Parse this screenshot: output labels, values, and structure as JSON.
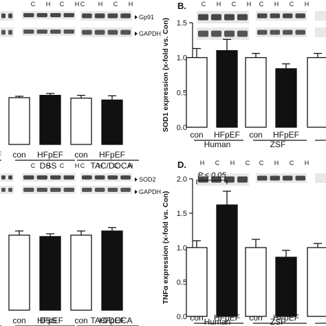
{
  "chart_data": [
    {
      "panel": "",
      "type": "bar",
      "categories": [
        "",
        "con",
        "HFpEF",
        "con",
        "HFpEF"
      ],
      "values": [
        0.97,
        1.0,
        1.05,
        0.99,
        0.95
      ],
      "errors": [
        0.06,
        0.03,
        0.04,
        0.06,
        0.09
      ],
      "fills": [
        "#111111",
        "#ffffff",
        "#111111",
        "#ffffff",
        "#111111"
      ],
      "groups": [
        {
          "label": "",
          "from": 0,
          "to": 0
        },
        {
          "label": "DSS",
          "from": 1,
          "to": 2
        },
        {
          "label": "TAC/DOCA",
          "from": 3,
          "to": 4
        }
      ],
      "blot_labels": [
        "Gp91",
        "GAPDH"
      ],
      "lane_letters": [
        [
          "C",
          "H",
          "C",
          "H"
        ],
        [
          "C",
          "H",
          "C",
          "H"
        ]
      ],
      "tick_labels": [
        "HFpEF"
      ],
      "ylim": [
        0,
        1.5
      ]
    },
    {
      "panel": "B.",
      "type": "bar",
      "categories": [
        "con",
        "HFpEF",
        "con",
        "HFpEF",
        ""
      ],
      "values": [
        1.0,
        1.1,
        1.0,
        0.84,
        1.0
      ],
      "errors": [
        0.13,
        0.16,
        0.06,
        0.07,
        0.06
      ],
      "fills": [
        "#ffffff",
        "#111111",
        "#ffffff",
        "#111111",
        "#ffffff"
      ],
      "groups": [
        {
          "label": "Human",
          "from": 0,
          "to": 1
        },
        {
          "label": "ZSF",
          "from": 2,
          "to": 3
        },
        {
          "label": "",
          "from": 4,
          "to": 4
        }
      ],
      "lane_letters": [
        [
          "C",
          "H",
          "C",
          "H"
        ],
        [
          "C",
          "H",
          "C",
          "H"
        ]
      ],
      "ylabel": "SOD1 expression (x-fold vs. Con)",
      "yticks": [
        "0.0",
        "0.5",
        "1.0",
        "1.5"
      ],
      "ylim": [
        0,
        1.5
      ],
      "annotation": ""
    },
    {
      "panel": "",
      "type": "bar",
      "categories": [
        "",
        "con",
        "HFpEF",
        "con",
        "HFpEF"
      ],
      "values": [
        1.08,
        1.08,
        1.06,
        1.08,
        1.14
      ],
      "errors": [
        0.05,
        0.06,
        0.04,
        0.06,
        0.05
      ],
      "fills": [
        "#111111",
        "#ffffff",
        "#111111",
        "#ffffff",
        "#111111"
      ],
      "groups": [
        {
          "label": "",
          "from": 0,
          "to": 0
        },
        {
          "label": "DSS",
          "from": 1,
          "to": 2
        },
        {
          "label": "TAC/DOCA",
          "from": 3,
          "to": 4
        }
      ],
      "blot_labels": [
        "SOD2",
        "GAPDH"
      ],
      "lane_letters": [
        [
          "C",
          "H",
          "C",
          "H"
        ],
        [
          "C",
          "H",
          "C",
          "H"
        ]
      ],
      "ylim": [
        0,
        2.0
      ]
    },
    {
      "panel": "D.",
      "type": "bar",
      "categories": [
        "con",
        "HFpEF",
        "con",
        "HFpEF",
        ""
      ],
      "values": [
        1.0,
        1.62,
        1.0,
        0.86,
        1.0
      ],
      "errors": [
        0.1,
        0.2,
        0.12,
        0.1,
        0.06
      ],
      "fills": [
        "#ffffff",
        "#111111",
        "#ffffff",
        "#111111",
        "#ffffff"
      ],
      "groups": [
        {
          "label": "Human",
          "from": 0,
          "to": 1
        },
        {
          "label": "ZSF",
          "from": 2,
          "to": 3
        },
        {
          "label": "",
          "from": 4,
          "to": 4
        }
      ],
      "lane_letters": [
        [
          "H",
          "C",
          "H",
          "C"
        ],
        [
          "C",
          "H",
          "C",
          "H"
        ]
      ],
      "ylabel": "TNFα expression (x-fold vs. Con)",
      "yticks": [
        "0.0",
        "0.5",
        "1.0",
        "1.5",
        "2.0"
      ],
      "ylim": [
        0,
        2.0
      ],
      "annotation": "P < 0.05"
    }
  ]
}
